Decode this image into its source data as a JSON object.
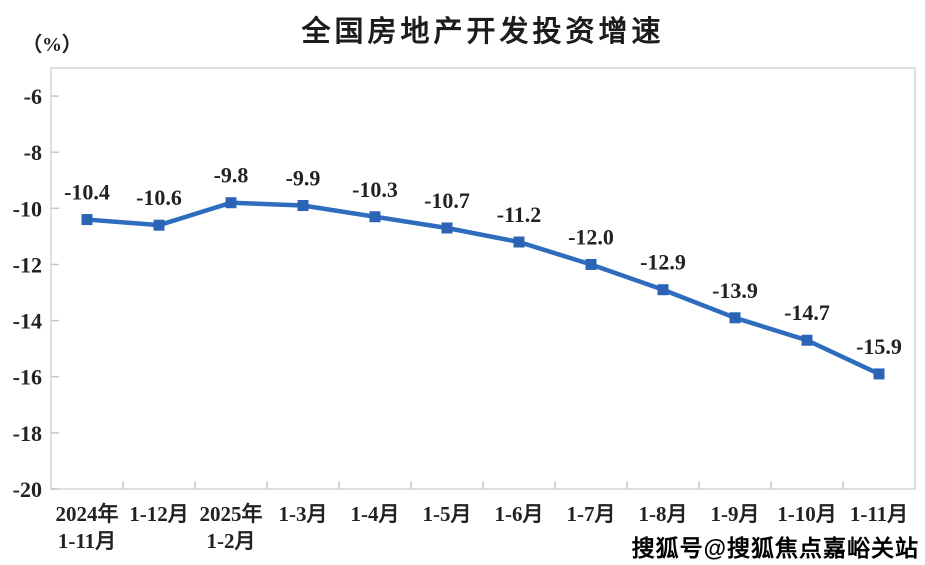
{
  "chart_data": {
    "type": "line",
    "title": "全国房地产开发投资增速",
    "unit_label": "（%）",
    "xlabel": "",
    "ylabel": "（%）",
    "categories": [
      [
        "2024年",
        "1-11月"
      ],
      [
        "1-12月"
      ],
      [
        "2025年",
        "1-2月"
      ],
      [
        "1-3月"
      ],
      [
        "1-4月"
      ],
      [
        "1-5月"
      ],
      [
        "1-6月"
      ],
      [
        "1-7月"
      ],
      [
        "1-8月"
      ],
      [
        "1-9月"
      ],
      [
        "1-10月"
      ],
      [
        "1-11月"
      ]
    ],
    "values": [
      -10.4,
      -10.6,
      -9.8,
      -9.9,
      -10.3,
      -10.7,
      -11.2,
      -12.0,
      -12.9,
      -13.9,
      -14.7,
      -15.9
    ],
    "data_labels": [
      "-10.4",
      "-10.6",
      "-9.8",
      "-9.9",
      "-10.3",
      "-10.7",
      "-11.2",
      "-12.0",
      "-12.9",
      "-13.9",
      "-14.7",
      "-15.9"
    ],
    "yticks": [
      -6,
      -8,
      -10,
      -12,
      -14,
      -16,
      -18,
      -20
    ],
    "ylim": [
      -20,
      -5
    ],
    "grid": false,
    "legend": "none",
    "marker": "square",
    "line_color": "#2e6cbe",
    "marker_color": "#2b64b4",
    "axis_color": "#d9d9d9",
    "tick_color": "#c4c4c4",
    "text_color": "#222222"
  },
  "watermark": {
    "text": "搜狐号@搜狐焦点嘉峪关站"
  }
}
